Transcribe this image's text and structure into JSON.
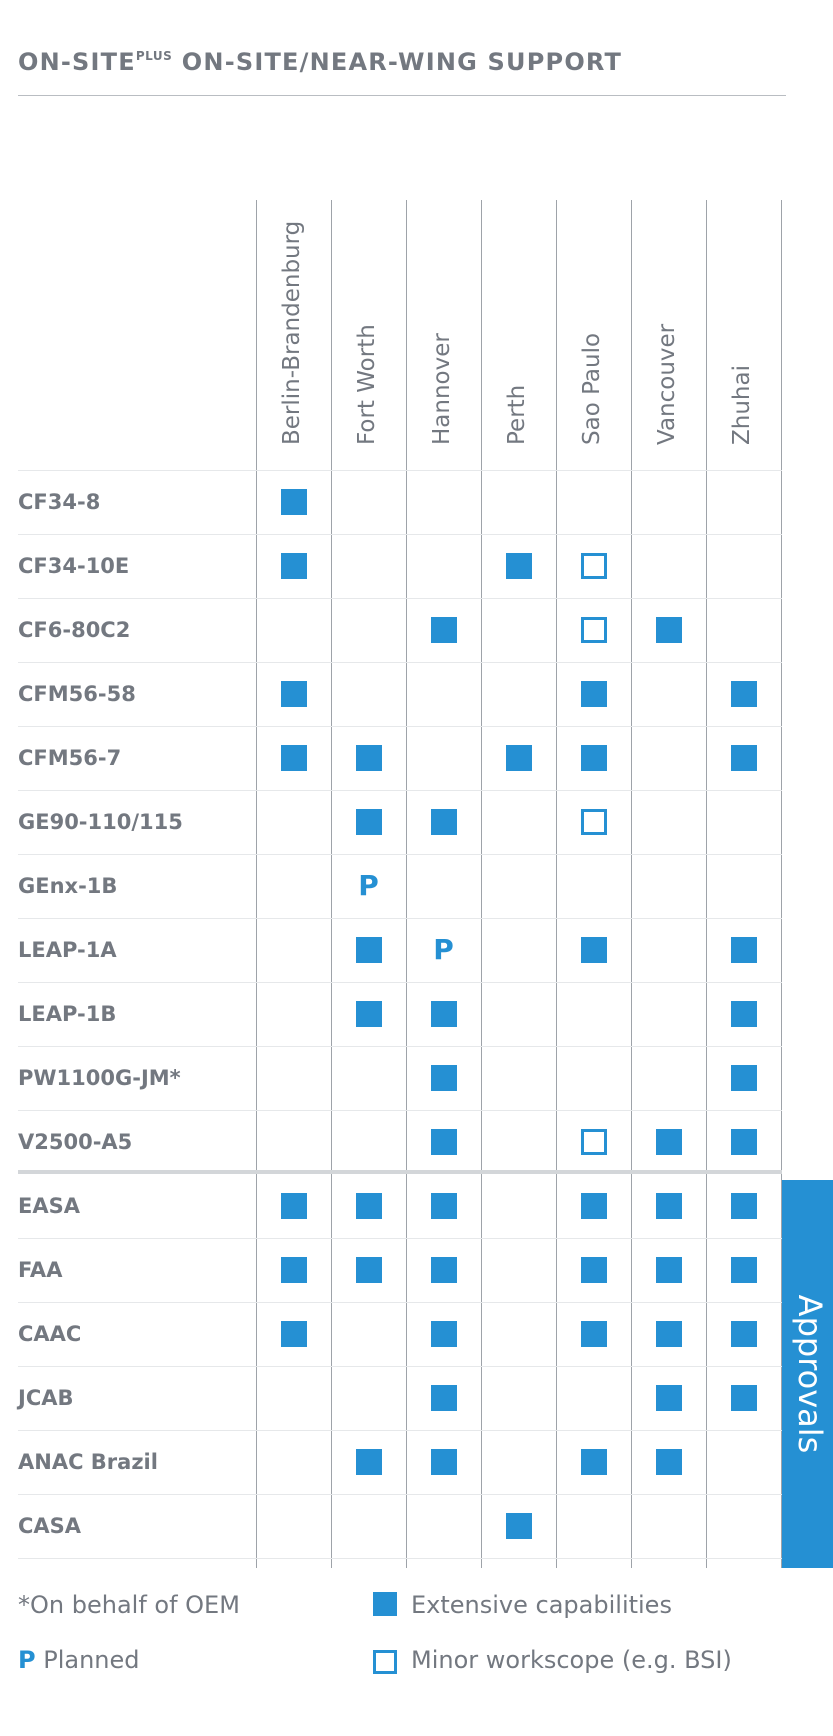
{
  "title": {
    "prefix": "ON-SITE",
    "sup": "PLUS",
    "rest": " ON-SITE/NEAR-WING SUPPORT"
  },
  "locations": [
    "Berlin-Brandenburg",
    "Fort Worth",
    "Hannover",
    "Perth",
    "Sao Paulo",
    "Vancouver",
    "Zhuhai"
  ],
  "engines": [
    {
      "name": "CF34-8",
      "cells": [
        "E",
        "",
        "",
        "",
        "",
        "",
        ""
      ]
    },
    {
      "name": "CF34-10E",
      "cells": [
        "E",
        "",
        "",
        "E",
        "M",
        "",
        ""
      ]
    },
    {
      "name": "CF6-80C2",
      "cells": [
        "",
        "",
        "E",
        "",
        "M",
        "E",
        ""
      ]
    },
    {
      "name": "CFM56-58",
      "cells": [
        "E",
        "",
        "",
        "",
        "E",
        "",
        "E"
      ]
    },
    {
      "name": "CFM56-7",
      "cells": [
        "E",
        "E",
        "",
        "E",
        "E",
        "",
        "E"
      ]
    },
    {
      "name": "GE90-110/115",
      "cells": [
        "",
        "E",
        "E",
        "",
        "M",
        "",
        ""
      ]
    },
    {
      "name": "GEnx-1B",
      "cells": [
        "",
        "P",
        "",
        "",
        "",
        "",
        ""
      ]
    },
    {
      "name": "LEAP-1A",
      "cells": [
        "",
        "E",
        "P",
        "",
        "E",
        "",
        "E"
      ]
    },
    {
      "name": "LEAP-1B",
      "cells": [
        "",
        "E",
        "E",
        "",
        "",
        "",
        "E"
      ]
    },
    {
      "name": "PW1100G-JM*",
      "cells": [
        "",
        "",
        "E",
        "",
        "",
        "",
        "E"
      ]
    },
    {
      "name": "V2500-A5",
      "cells": [
        "",
        "",
        "E",
        "",
        "M",
        "E",
        "E"
      ]
    }
  ],
  "approvals": [
    {
      "name": "EASA",
      "cells": [
        "E",
        "E",
        "E",
        "",
        "E",
        "E",
        "E"
      ]
    },
    {
      "name": "FAA",
      "cells": [
        "E",
        "E",
        "E",
        "",
        "E",
        "E",
        "E"
      ]
    },
    {
      "name": "CAAC",
      "cells": [
        "E",
        "",
        "E",
        "",
        "E",
        "E",
        "E"
      ]
    },
    {
      "name": "JCAB",
      "cells": [
        "",
        "",
        "E",
        "",
        "",
        "E",
        "E"
      ]
    },
    {
      "name": "ANAC Brazil",
      "cells": [
        "",
        "E",
        "E",
        "",
        "E",
        "E",
        ""
      ]
    },
    {
      "name": "CASA",
      "cells": [
        "",
        "",
        "",
        "E",
        "",
        "",
        ""
      ]
    }
  ],
  "approvals_label": "Approvals",
  "planned_symbol": "P",
  "legend": {
    "oem_note": "*On behalf of OEM",
    "planned_symbol": "P",
    "planned_label": "Planned",
    "extensive_label": "Extensive capabilities",
    "minor_label": "Minor workscope (e.g. BSI)"
  },
  "colors": {
    "accent": "#2590d3",
    "text": "#737880",
    "grid": "#9ea3a9"
  }
}
